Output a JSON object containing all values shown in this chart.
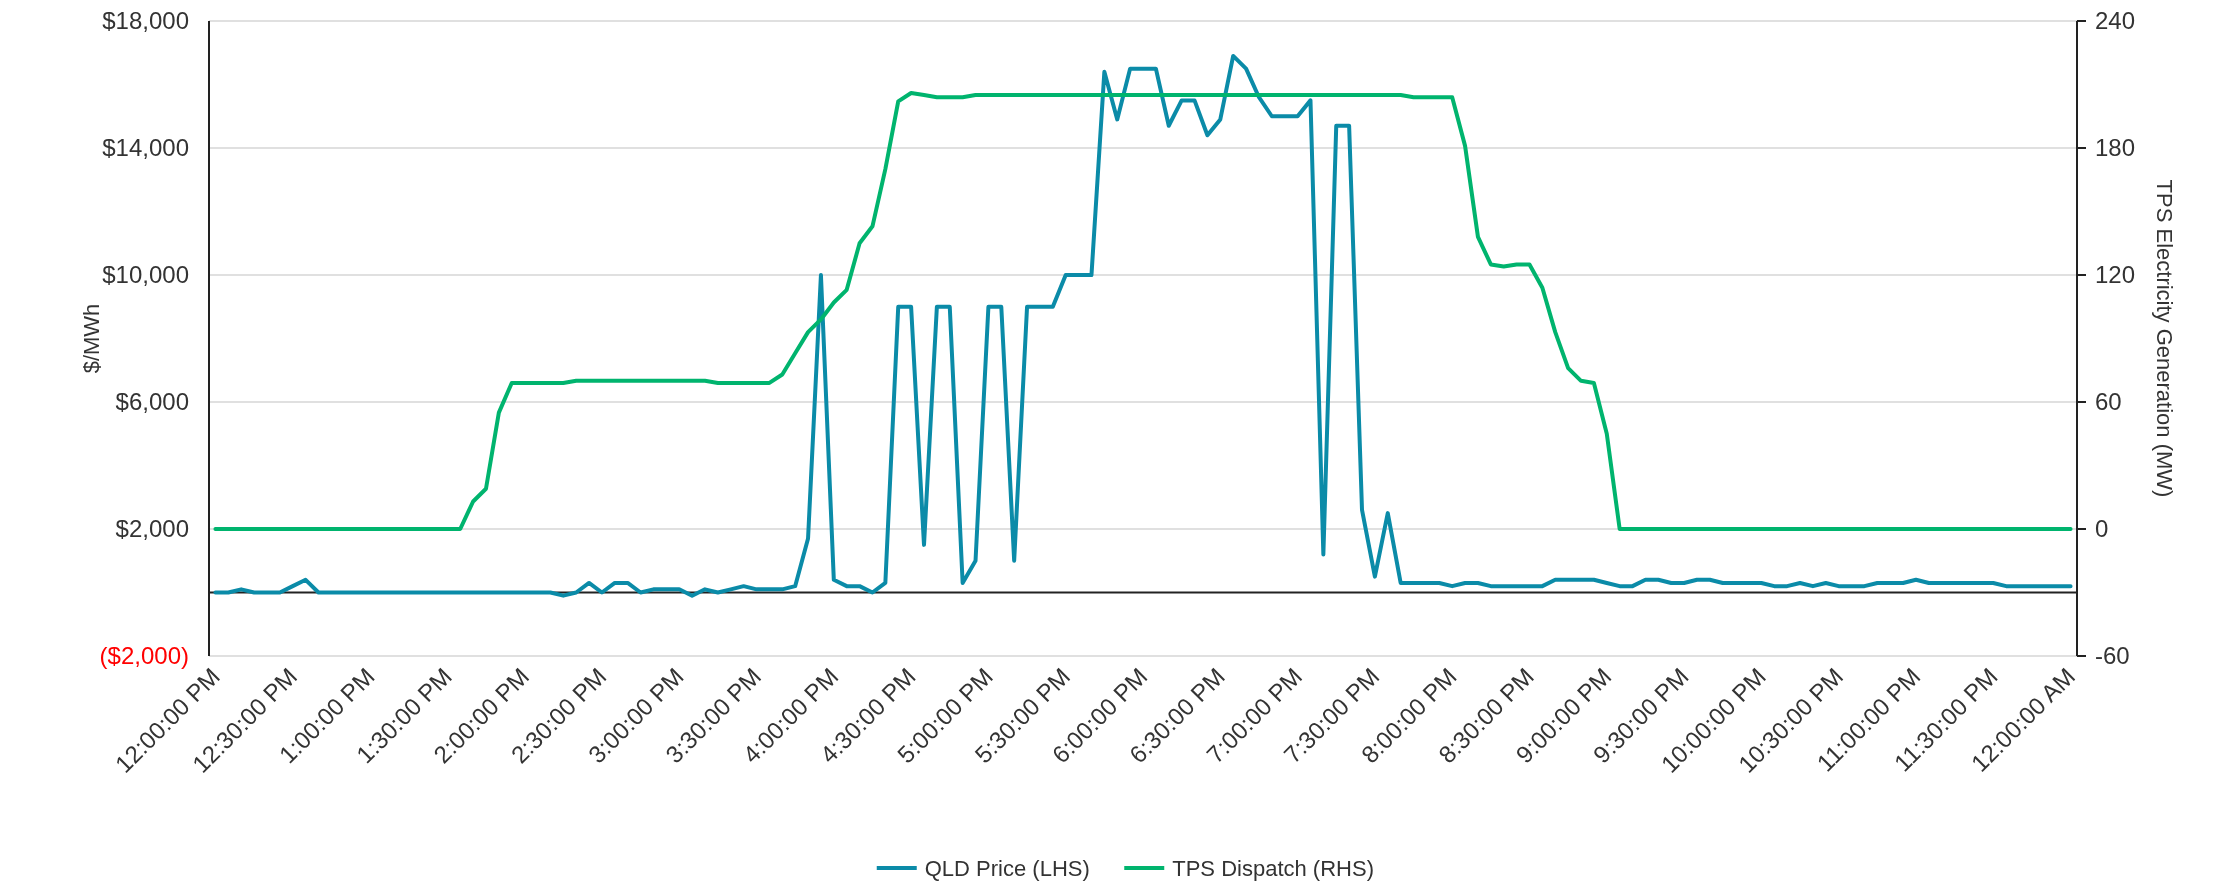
{
  "chart_data": {
    "type": "line",
    "categories": [
      "12:00:00 PM",
      null,
      null,
      null,
      null,
      null,
      "12:30:00 PM",
      null,
      null,
      null,
      null,
      null,
      "1:00:00 PM",
      null,
      null,
      null,
      null,
      null,
      "1:30:00 PM",
      null,
      null,
      null,
      null,
      null,
      "2:00:00 PM",
      null,
      null,
      null,
      null,
      null,
      "2:30:00 PM",
      null,
      null,
      null,
      null,
      null,
      "3:00:00 PM",
      null,
      null,
      null,
      null,
      null,
      "3:30:00 PM",
      null,
      null,
      null,
      null,
      null,
      "4:00:00 PM",
      null,
      null,
      null,
      null,
      null,
      "4:30:00 PM",
      null,
      null,
      null,
      null,
      null,
      "5:00:00 PM",
      null,
      null,
      null,
      null,
      null,
      "5:30:00 PM",
      null,
      null,
      null,
      null,
      null,
      "6:00:00 PM",
      null,
      null,
      null,
      null,
      null,
      "6:30:00 PM",
      null,
      null,
      null,
      null,
      null,
      "7:00:00 PM",
      null,
      null,
      null,
      null,
      null,
      "7:30:00 PM",
      null,
      null,
      null,
      null,
      null,
      "8:00:00 PM",
      null,
      null,
      null,
      null,
      null,
      "8:30:00 PM",
      null,
      null,
      null,
      null,
      null,
      "9:00:00 PM",
      null,
      null,
      null,
      null,
      null,
      "9:30:00 PM",
      null,
      null,
      null,
      null,
      null,
      "10:00:00 PM",
      null,
      null,
      null,
      null,
      null,
      "10:30:00 PM",
      null,
      null,
      null,
      null,
      null,
      "11:00:00 PM",
      null,
      null,
      null,
      null,
      null,
      "11:30:00 PM",
      null,
      null,
      null,
      null,
      null,
      "12:00:00 AM"
    ],
    "series": [
      {
        "name": "QLD Price (LHS)",
        "color": "#0b8ba8",
        "values": [
          0,
          0,
          100,
          0,
          0,
          0,
          200,
          400,
          0,
          0,
          0,
          0,
          0,
          0,
          0,
          0,
          0,
          0,
          0,
          0,
          0,
          0,
          0,
          0,
          0,
          0,
          0,
          -100,
          0,
          300,
          0,
          300,
          300,
          0,
          100,
          100,
          100,
          -100,
          100,
          0,
          100,
          200,
          100,
          100,
          100,
          200,
          1700,
          10000,
          400,
          200,
          200,
          0,
          300,
          9000,
          9000,
          1500,
          9000,
          9000,
          300,
          1000,
          9000,
          9000,
          1000,
          9000,
          9000,
          9000,
          10000,
          10000,
          10000,
          16400,
          14900,
          16500,
          16500,
          16500,
          14700,
          15500,
          15500,
          14400,
          14900,
          16900,
          16500,
          15600,
          15000,
          15000,
          15000,
          15500,
          1200,
          14700,
          14700,
          2600,
          500,
          2500,
          300,
          300,
          300,
          300,
          200,
          300,
          300,
          200,
          200,
          200,
          200,
          200,
          400,
          400,
          400,
          400,
          300,
          200,
          200,
          400,
          400,
          300,
          300,
          400,
          400,
          300,
          300,
          300,
          300,
          200,
          200,
          300,
          200,
          300,
          200,
          200,
          200,
          300,
          300,
          300,
          400,
          300,
          300,
          300,
          300,
          300,
          300,
          200,
          200,
          200,
          200,
          200,
          200
        ]
      },
      {
        "name": "TPS Dispatch (RHS)",
        "color": "#00b46e",
        "axis": "y2",
        "values": [
          0,
          0,
          0,
          0,
          0,
          0,
          0,
          0,
          0,
          0,
          0,
          0,
          0,
          0,
          0,
          0,
          0,
          0,
          0,
          0,
          13,
          19,
          55,
          69,
          69,
          69,
          69,
          69,
          70,
          70,
          70,
          70,
          70,
          70,
          70,
          70,
          70,
          70,
          70,
          69,
          69,
          69,
          69,
          69,
          73,
          83,
          93,
          99,
          107,
          113,
          135,
          143,
          170,
          202,
          206,
          205,
          204,
          204,
          204,
          205,
          205,
          205,
          205,
          205,
          205,
          205,
          205,
          205,
          205,
          205,
          205,
          205,
          205,
          205,
          205,
          205,
          205,
          205,
          205,
          205,
          205,
          205,
          205,
          205,
          205,
          205,
          205,
          205,
          205,
          205,
          205,
          205,
          205,
          204,
          204,
          204,
          204,
          181,
          138,
          125,
          124,
          125,
          125,
          114,
          93,
          76,
          70,
          69,
          45,
          0,
          0,
          0,
          0,
          0,
          0,
          0,
          0,
          0,
          0,
          0,
          0,
          0,
          0,
          0,
          0,
          0,
          0,
          0,
          0,
          0,
          0,
          0,
          0,
          0,
          0,
          0,
          0,
          0,
          0,
          0,
          0,
          0,
          0,
          0,
          0
        ]
      }
    ],
    "ylabel": "$/MWh",
    "y2label": "TPS Electricity Generation (MW)",
    "ylim": [
      -2000,
      18000
    ],
    "yticks": [
      {
        "value": -2000,
        "label": "($2,000)"
      },
      {
        "value": 2000,
        "label": "$2,000"
      },
      {
        "value": 6000,
        "label": "$6,000"
      },
      {
        "value": 10000,
        "label": "$10,000"
      },
      {
        "value": 14000,
        "label": "$14,000"
      },
      {
        "value": 18000,
        "label": "$18,000"
      }
    ],
    "y2lim": [
      -60,
      240
    ],
    "y2ticks": [
      -60,
      0,
      60,
      120,
      180,
      240
    ],
    "grid": "y",
    "legend": "bottom",
    "marker": "none",
    "line_style": "solid"
  }
}
